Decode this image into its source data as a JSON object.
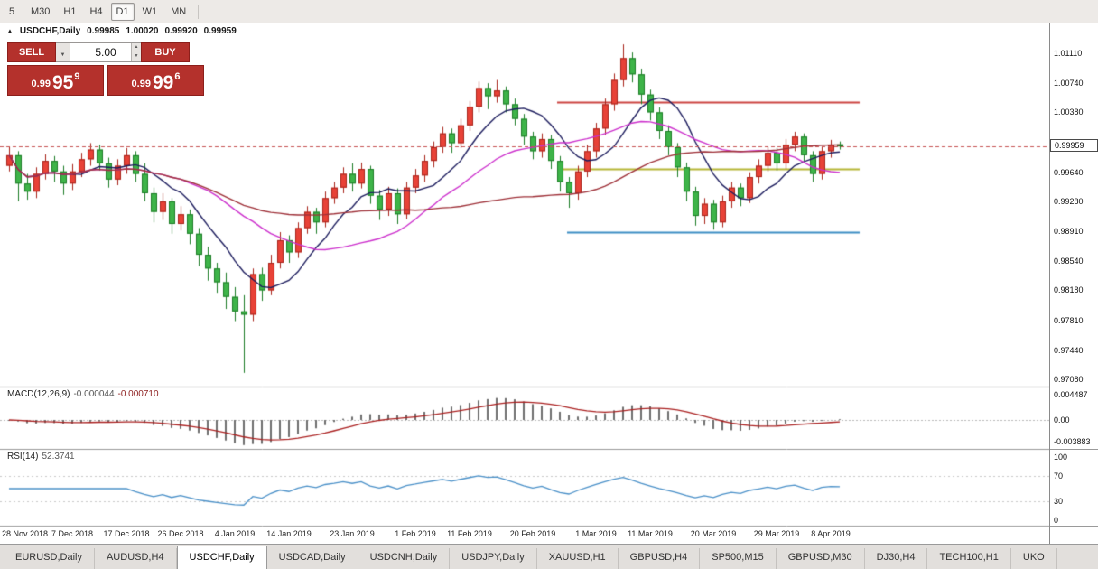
{
  "toolbar": {
    "timeframes": [
      {
        "label": "5",
        "active": false
      },
      {
        "label": "M30",
        "active": false
      },
      {
        "label": "H1",
        "active": false
      },
      {
        "label": "H4",
        "active": false
      },
      {
        "label": "D1",
        "active": true
      },
      {
        "label": "W1",
        "active": false
      },
      {
        "label": "MN",
        "active": false
      }
    ]
  },
  "chart": {
    "collapse_icon": "▲",
    "symbol_title": "USDCHF,Daily",
    "ohlc_text": {
      "open": "0.99985",
      "high": "1.00020",
      "low": "0.99920",
      "close": "0.99959"
    },
    "trade_panel": {
      "sell_label": "SELL",
      "buy_label": "BUY",
      "volume": "5.00",
      "sell_price": {
        "prefix": "0.99",
        "big": "95",
        "sup": "9"
      },
      "buy_price": {
        "prefix": "0.99",
        "big": "99",
        "sup": "6"
      }
    },
    "current_price_tag": "0.99959"
  },
  "price_axis_ticks": [
    "1.01110",
    "1.00740",
    "1.00380",
    "0.99640",
    "0.99280",
    "0.98910",
    "0.98540",
    "0.98180",
    "0.97810",
    "0.97440",
    "0.97080"
  ],
  "macd": {
    "name": "MACD(12,26,9)",
    "value_main": "-0.000044",
    "value_signal": "-0.000710",
    "axis_ticks": [
      {
        "label": "0.004487",
        "value": 0.004487
      },
      {
        "label": "0.00",
        "value": 0
      },
      {
        "label": "-0.003883",
        "value": -0.003883
      }
    ]
  },
  "rsi": {
    "name": "RSI(14)",
    "value": "52.3741",
    "axis_ticks": [
      {
        "label": "100",
        "value": 100
      },
      {
        "label": "70",
        "value": 70
      },
      {
        "label": "30",
        "value": 30
      },
      {
        "label": "0",
        "value": 0
      }
    ]
  },
  "date_axis": [
    {
      "i": 0,
      "label": "28 Nov 2018"
    },
    {
      "i": 7,
      "label": "7 Dec 2018"
    },
    {
      "i": 13,
      "label": "17 Dec 2018"
    },
    {
      "i": 19,
      "label": "26 Dec 2018"
    },
    {
      "i": 25,
      "label": "4 Jan 2019"
    },
    {
      "i": 31,
      "label": "14 Jan 2019"
    },
    {
      "i": 38,
      "label": "23 Jan 2019"
    },
    {
      "i": 45,
      "label": "1 Feb 2019"
    },
    {
      "i": 51,
      "label": "11 Feb 2019"
    },
    {
      "i": 58,
      "label": "20 Feb 2019"
    },
    {
      "i": 65,
      "label": "1 Mar 2019"
    },
    {
      "i": 71,
      "label": "11 Mar 2019"
    },
    {
      "i": 78,
      "label": "20 Mar 2019"
    },
    {
      "i": 85,
      "label": "29 Mar 2019"
    },
    {
      "i": 91,
      "label": "8 Apr 2019"
    }
  ],
  "tabs": [
    {
      "label": "EURUSD,Daily",
      "active": false
    },
    {
      "label": "AUDUSD,H4",
      "active": false
    },
    {
      "label": "USDCHF,Daily",
      "active": true
    },
    {
      "label": "USDCAD,Daily",
      "active": false
    },
    {
      "label": "USDCNH,Daily",
      "active": false
    },
    {
      "label": "USDJPY,Daily",
      "active": false
    },
    {
      "label": "XAUUSD,H1",
      "active": false
    },
    {
      "label": "GBPUSD,H4",
      "active": false
    },
    {
      "label": "SP500,M15",
      "active": false
    },
    {
      "label": "GBPUSD,M30",
      "active": false
    },
    {
      "label": "DJ30,H4",
      "active": false
    },
    {
      "label": "TECH100,H1",
      "active": false
    },
    {
      "label": "UKO",
      "active": false
    }
  ],
  "colors": {
    "up": "#e84237",
    "up_border": "#a8241b",
    "down": "#3eb449",
    "down_border": "#1d7d27",
    "ma_fast": "#1d1d5e",
    "ma_mid": "#cc2fcc",
    "ma_slow": "#9e3038",
    "macd_hist": "#6f6f6f",
    "macd_signal": "#aa2020",
    "rsi_line": "#4a90c8",
    "cur_line": "#c65353",
    "hline_red": "#cc4440",
    "hline_yellow": "#b6b636",
    "hline_blue": "#3d8ec4"
  },
  "chart_data": {
    "type": "candlestick",
    "title": "USDCHF,Daily",
    "ylim": [
      0.9702,
      1.0127
    ],
    "current_price": 0.99959,
    "hlines": [
      {
        "price": 1.0051,
        "color_key": "hline_red",
        "x1": 617,
        "x2": 952
      },
      {
        "price": 0.9968,
        "color_key": "hline_yellow",
        "x1": 617,
        "x2": 952
      },
      {
        "price": 0.98895,
        "color_key": "hline_blue",
        "x1": 628,
        "x2": 952
      }
    ],
    "overlays": [
      {
        "type": "sma",
        "period": 8,
        "color_key": "ma_fast"
      },
      {
        "type": "sma",
        "period": 20,
        "color_key": "ma_mid"
      },
      {
        "type": "sma",
        "period": 45,
        "color_key": "ma_slow"
      }
    ],
    "macd_params": [
      12,
      26,
      9
    ],
    "rsi_period": 14,
    "candles_ohlc": [
      [
        0.9972,
        0.9996,
        0.9965,
        0.9985
      ],
      [
        0.9985,
        0.999,
        0.9928,
        0.995
      ],
      [
        0.995,
        0.9962,
        0.993,
        0.994
      ],
      [
        0.994,
        0.997,
        0.9932,
        0.9962
      ],
      [
        0.9962,
        0.9986,
        0.9955,
        0.9978
      ],
      [
        0.9978,
        0.9984,
        0.9952,
        0.9965
      ],
      [
        0.9965,
        0.9972,
        0.9936,
        0.995
      ],
      [
        0.995,
        0.9974,
        0.9942,
        0.9965
      ],
      [
        0.9965,
        0.9988,
        0.9958,
        0.998
      ],
      [
        0.998,
        1.0,
        0.9972,
        0.9992
      ],
      [
        0.9992,
        0.9998,
        0.9966,
        0.9975
      ],
      [
        0.9975,
        0.9982,
        0.9945,
        0.9955
      ],
      [
        0.9955,
        0.998,
        0.9948,
        0.9972
      ],
      [
        0.9972,
        0.9994,
        0.9962,
        0.9985
      ],
      [
        0.9985,
        0.999,
        0.9952,
        0.9962
      ],
      [
        0.9962,
        0.9975,
        0.9928,
        0.9938
      ],
      [
        0.9938,
        0.9945,
        0.9902,
        0.9915
      ],
      [
        0.9915,
        0.9938,
        0.9905,
        0.9928
      ],
      [
        0.9928,
        0.9932,
        0.9888,
        0.99
      ],
      [
        0.99,
        0.9922,
        0.9892,
        0.9912
      ],
      [
        0.9912,
        0.9918,
        0.9875,
        0.9888
      ],
      [
        0.9888,
        0.9895,
        0.9848,
        0.9862
      ],
      [
        0.9862,
        0.9872,
        0.983,
        0.9845
      ],
      [
        0.9845,
        0.9852,
        0.9815,
        0.9828
      ],
      [
        0.9828,
        0.984,
        0.9795,
        0.981
      ],
      [
        0.981,
        0.9822,
        0.978,
        0.9792
      ],
      [
        0.9792,
        0.9812,
        0.9716,
        0.9788
      ],
      [
        0.9788,
        0.9845,
        0.978,
        0.9838
      ],
      [
        0.9838,
        0.9846,
        0.9805,
        0.9818
      ],
      [
        0.9818,
        0.9862,
        0.9812,
        0.9852
      ],
      [
        0.9852,
        0.989,
        0.9845,
        0.988
      ],
      [
        0.988,
        0.9886,
        0.9852,
        0.9865
      ],
      [
        0.9865,
        0.9902,
        0.9858,
        0.9895
      ],
      [
        0.9895,
        0.9922,
        0.9888,
        0.9915
      ],
      [
        0.9915,
        0.992,
        0.9888,
        0.9902
      ],
      [
        0.9902,
        0.994,
        0.9896,
        0.9932
      ],
      [
        0.9932,
        0.9952,
        0.9925,
        0.9945
      ],
      [
        0.9945,
        0.997,
        0.9938,
        0.9962
      ],
      [
        0.9962,
        0.9975,
        0.994,
        0.995
      ],
      [
        0.995,
        0.9976,
        0.9944,
        0.9968
      ],
      [
        0.9968,
        0.9972,
        0.9925,
        0.9935
      ],
      [
        0.9935,
        0.9942,
        0.9905,
        0.9918
      ],
      [
        0.9918,
        0.9946,
        0.991,
        0.9938
      ],
      [
        0.9938,
        0.9944,
        0.99,
        0.9912
      ],
      [
        0.9912,
        0.9952,
        0.9906,
        0.9945
      ],
      [
        0.9945,
        0.9968,
        0.9938,
        0.996
      ],
      [
        0.996,
        0.9985,
        0.9952,
        0.9978
      ],
      [
        0.9978,
        1.0002,
        0.997,
        0.9995
      ],
      [
        0.9995,
        1.002,
        0.9988,
        1.0012
      ],
      [
        1.0012,
        1.0018,
        0.9988,
        1.0
      ],
      [
        1.0,
        1.003,
        0.9994,
        1.0022
      ],
      [
        1.0022,
        1.0052,
        1.0015,
        1.0045
      ],
      [
        1.0045,
        1.0076,
        1.0038,
        1.0068
      ],
      [
        1.0068,
        1.0074,
        1.0042,
        1.0058
      ],
      [
        1.0058,
        1.0078,
        1.005,
        1.0065
      ],
      [
        1.0065,
        1.007,
        1.0038,
        1.0048
      ],
      [
        1.0048,
        1.0055,
        1.0022,
        1.003
      ],
      [
        1.003,
        1.0036,
        0.9998,
        1.0008
      ],
      [
        1.0008,
        1.0014,
        0.998,
        0.999
      ],
      [
        0.999,
        1.0012,
        0.9982,
        1.0005
      ],
      [
        1.0005,
        1.001,
        0.9968,
        0.9978
      ],
      [
        0.9978,
        0.9984,
        0.994,
        0.9952
      ],
      [
        0.9952,
        0.9958,
        0.992,
        0.9938
      ],
      [
        0.9938,
        0.9972,
        0.993,
        0.9965
      ],
      [
        0.9965,
        0.9998,
        0.9958,
        0.999
      ],
      [
        0.999,
        1.0025,
        0.9982,
        1.0018
      ],
      [
        1.0018,
        1.0055,
        1.001,
        1.0048
      ],
      [
        1.0048,
        1.0086,
        1.004,
        1.0078
      ],
      [
        1.0078,
        1.0122,
        1.007,
        1.0105
      ],
      [
        1.0105,
        1.0112,
        1.0075,
        1.0085
      ],
      [
        1.0085,
        1.0092,
        1.0048,
        1.006
      ],
      [
        1.006,
        1.0066,
        1.0028,
        1.0038
      ],
      [
        1.0038,
        1.0044,
        1.0005,
        1.0015
      ],
      [
        1.0015,
        1.0022,
        0.9985,
        0.9995
      ],
      [
        0.9995,
        1.0,
        0.9958,
        0.997
      ],
      [
        0.997,
        0.9976,
        0.9928,
        0.994
      ],
      [
        0.994,
        0.9946,
        0.9898,
        0.991
      ],
      [
        0.991,
        0.9932,
        0.99,
        0.9925
      ],
      [
        0.9925,
        0.993,
        0.9893,
        0.9902
      ],
      [
        0.9902,
        0.9935,
        0.9896,
        0.9928
      ],
      [
        0.9928,
        0.9952,
        0.992,
        0.9945
      ],
      [
        0.9945,
        0.995,
        0.9922,
        0.9932
      ],
      [
        0.9932,
        0.9964,
        0.9926,
        0.9958
      ],
      [
        0.9958,
        0.998,
        0.995,
        0.9972
      ],
      [
        0.9972,
        0.9995,
        0.9965,
        0.9988
      ],
      [
        0.9988,
        0.9994,
        0.9966,
        0.9975
      ],
      [
        0.9975,
        1.0005,
        0.9968,
        0.9998
      ],
      [
        0.9998,
        1.0014,
        0.999,
        1.0008
      ],
      [
        1.0008,
        1.0012,
        0.9978,
        0.9985
      ],
      [
        0.9985,
        0.999,
        0.9952,
        0.9962
      ],
      [
        0.9962,
        0.9995,
        0.9955,
        0.999
      ],
      [
        0.999,
        1.0004,
        0.9982,
        0.9998
      ],
      [
        0.99985,
        1.0002,
        0.9992,
        0.99959
      ]
    ]
  }
}
